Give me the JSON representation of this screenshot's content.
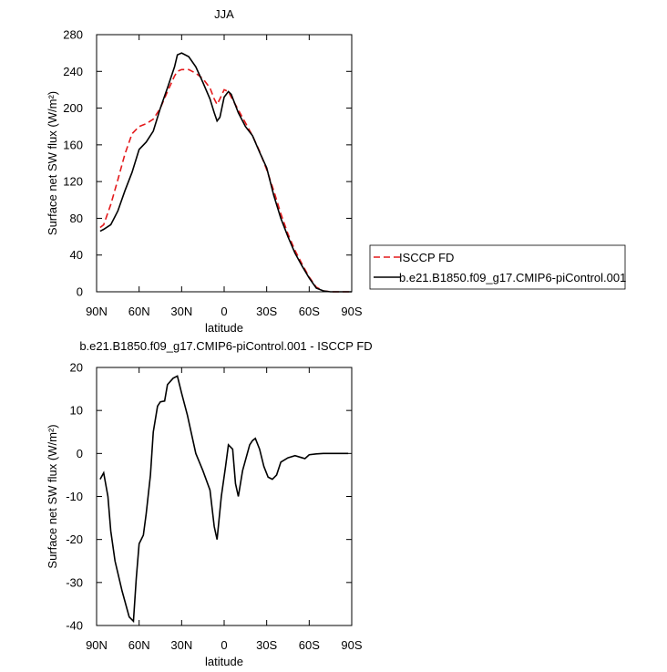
{
  "chart_data": [
    {
      "type": "line",
      "title": "JJA",
      "xlabel": "latitude",
      "ylabel": "Surface net SW flux (W/m²)",
      "x": [
        87.5,
        85,
        80,
        75,
        70,
        65,
        60,
        55,
        50,
        45,
        40,
        35,
        33,
        30,
        25,
        20,
        15,
        10,
        7,
        5,
        3,
        0,
        -3,
        -5,
        -10,
        -15,
        -20,
        -25,
        -30,
        -35,
        -40,
        -45,
        -50,
        -55,
        -60,
        -65,
        -70,
        -75,
        -80,
        -85,
        -90
      ],
      "xlim": [
        90,
        -90
      ],
      "xticks": [
        {
          "value": 90,
          "label": "90N"
        },
        {
          "value": 60,
          "label": "60N"
        },
        {
          "value": 30,
          "label": "30N"
        },
        0,
        {
          "value": -30,
          "label": "30S"
        },
        {
          "value": -60,
          "label": "60S"
        },
        {
          "value": -90,
          "label": "90S"
        }
      ],
      "ylim": [
        0,
        280
      ],
      "yticks": [
        0,
        40,
        80,
        120,
        160,
        200,
        240,
        280
      ],
      "legend": "right",
      "series": [
        {
          "name": "ISCCP FD",
          "color": "#e41a1c",
          "dashed": true,
          "values": [
            70,
            73,
            95,
            122,
            150,
            172,
            180,
            183,
            188,
            200,
            218,
            235,
            240,
            242,
            242,
            238,
            232,
            222,
            210,
            204,
            210,
            220,
            218,
            212,
            198,
            184,
            170,
            153,
            133,
            110,
            85,
            63,
            45,
            30,
            16,
            5,
            1,
            0,
            0,
            0,
            0
          ]
        },
        {
          "name": "b.e21.B1850.f09_g17.CMIP6-piControl.001",
          "color": "#000000",
          "dashed": false,
          "values": [
            66,
            68,
            73,
            88,
            110,
            130,
            155,
            163,
            175,
            200,
            222,
            245,
            258,
            260,
            256,
            245,
            228,
            210,
            195,
            186,
            190,
            212,
            218,
            215,
            195,
            180,
            170,
            152,
            135,
            105,
            80,
            60,
            42,
            28,
            15,
            4,
            1,
            0,
            0,
            0,
            0
          ]
        }
      ]
    },
    {
      "type": "line",
      "title": "b.e21.B1850.f09_g17.CMIP6-piControl.001 - ISCCP FD",
      "xlabel": "latitude",
      "ylabel": "Surface net SW flux (W/m²)",
      "x": [
        87.5,
        85,
        82,
        80,
        77,
        72,
        67,
        64,
        62,
        60,
        57,
        55,
        52,
        50,
        47,
        45,
        42,
        40,
        36,
        33,
        30,
        26,
        24,
        20,
        15,
        10,
        7,
        5,
        2,
        -1,
        -3,
        -6,
        -8,
        -10,
        -13,
        -18,
        -20,
        -22,
        -25,
        -28,
        -31,
        -34,
        -37,
        -40,
        -45,
        -50,
        -55,
        -57,
        -60,
        -65,
        -70,
        -80,
        -87.5
      ],
      "xlim": [
        90,
        -90
      ],
      "xticks": [
        {
          "value": 90,
          "label": "90N"
        },
        {
          "value": 60,
          "label": "60N"
        },
        {
          "value": 30,
          "label": "30N"
        },
        0,
        {
          "value": -30,
          "label": "30S"
        },
        {
          "value": -60,
          "label": "60S"
        },
        {
          "value": -90,
          "label": "90S"
        }
      ],
      "ylim": [
        -40,
        20
      ],
      "yticks": [
        -40,
        -30,
        -20,
        -10,
        0,
        10,
        20
      ],
      "series": [
        {
          "color": "#000000",
          "dashed": false,
          "values": [
            -6,
            -4.5,
            -10,
            -18,
            -25,
            -32,
            -38,
            -39,
            -29,
            -21,
            -19,
            -14,
            -5,
            5,
            11,
            12,
            12.2,
            16,
            17.5,
            18,
            14,
            9,
            6,
            0,
            -4,
            -8.5,
            -17,
            -20,
            -10,
            -3,
            2,
            1,
            -7,
            -10,
            -4,
            2,
            3,
            3.5,
            1,
            -3,
            -5.5,
            -6,
            -5,
            -2,
            -1,
            -0.5,
            -1,
            -1.2,
            -0.3,
            -0.1,
            0,
            0,
            0
          ]
        }
      ]
    }
  ]
}
